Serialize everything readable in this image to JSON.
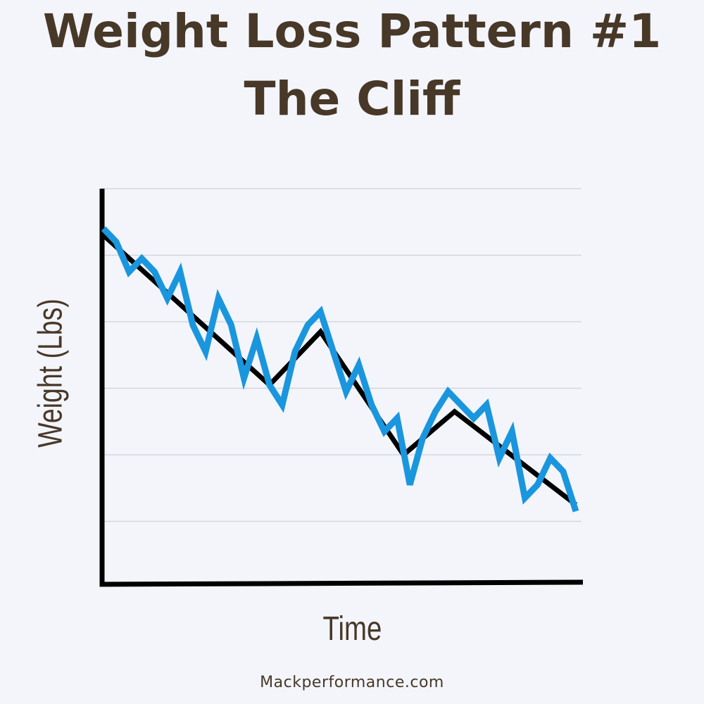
{
  "title_lines": [
    "Weight Loss Pattern #1",
    "The Cliff"
  ],
  "footer": "Mackperformance.com",
  "colors": {
    "background": "#f3f5fb",
    "text": "#483828",
    "trend_line": "#000000",
    "daily_line": "#1a96de",
    "grid": "#cfd2d8"
  },
  "chart_data": {
    "type": "line",
    "title": "Weight Loss Pattern #1 The Cliff",
    "xlabel": "Time",
    "ylabel": "Weight (Lbs)",
    "xlim": [
      0,
      37
    ],
    "ylim": [
      0,
      6
    ],
    "grid": true,
    "tick_labels": false,
    "series": [
      {
        "role": "trend",
        "x": [
          0,
          13,
          17,
          23.5,
          27.5,
          37
        ],
        "y": [
          5.3,
          3.05,
          3.85,
          2.0,
          2.65,
          1.25
        ]
      },
      {
        "role": "daily",
        "x": [
          0,
          1,
          2,
          3,
          4,
          5,
          6,
          7,
          8,
          9,
          10,
          11,
          12,
          13,
          14,
          15,
          16,
          17,
          18,
          19,
          20,
          21,
          22,
          23,
          24,
          25,
          26,
          27,
          28,
          29,
          30,
          31,
          32,
          33,
          34,
          35,
          36,
          37
        ],
        "y": [
          5.4,
          5.2,
          4.75,
          4.95,
          4.75,
          4.35,
          4.75,
          3.95,
          3.55,
          4.35,
          3.95,
          3.15,
          3.75,
          3.05,
          2.75,
          3.55,
          3.95,
          4.15,
          3.55,
          2.95,
          3.35,
          2.75,
          2.35,
          2.55,
          1.55,
          2.25,
          2.65,
          2.95,
          2.75,
          2.55,
          2.75,
          1.95,
          2.35,
          1.35,
          1.55,
          1.95,
          1.75,
          1.15
        ]
      }
    ]
  }
}
